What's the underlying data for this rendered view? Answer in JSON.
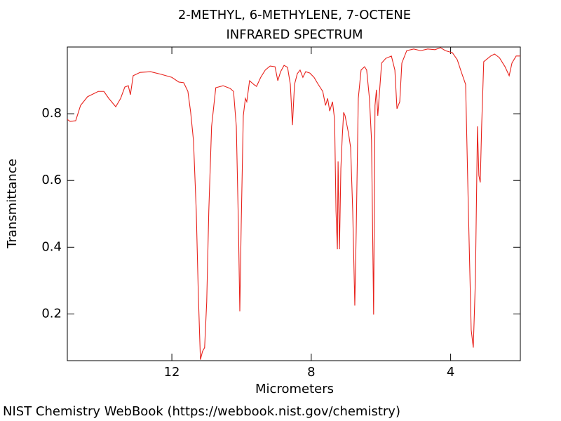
{
  "chart_data": {
    "type": "line",
    "title": "2-METHYL, 6-METHYLENE, 7-OCTENE",
    "subtitle": "INFRARED SPECTRUM",
    "xlabel": "Micrometers",
    "ylabel": "Transmittance",
    "color": "#e8221c",
    "xlim": [
      15,
      2
    ],
    "ylim": [
      0.06,
      1.0
    ],
    "xticks": [
      12,
      8,
      4
    ],
    "yticks": [
      0.2,
      0.4,
      0.6,
      0.8
    ],
    "x": [
      15.0,
      14.92,
      14.76,
      14.62,
      14.42,
      14.11,
      13.95,
      13.81,
      13.61,
      13.47,
      13.35,
      13.25,
      13.19,
      13.11,
      12.91,
      12.61,
      12.3,
      12.0,
      11.8,
      11.66,
      11.54,
      11.46,
      11.38,
      11.3,
      11.24,
      11.18,
      11.12,
      11.06,
      11.0,
      10.94,
      10.86,
      10.74,
      10.53,
      10.33,
      10.23,
      10.15,
      10.09,
      10.05,
      10.01,
      9.95,
      9.89,
      9.85,
      9.77,
      9.65,
      9.57,
      9.45,
      9.32,
      9.18,
      9.04,
      8.96,
      8.88,
      8.78,
      8.68,
      8.6,
      8.54,
      8.48,
      8.4,
      8.32,
      8.24,
      8.16,
      8.04,
      7.92,
      7.8,
      7.67,
      7.59,
      7.53,
      7.47,
      7.39,
      7.33,
      7.29,
      7.25,
      7.23,
      7.19,
      7.15,
      7.11,
      7.07,
      7.03,
      6.99,
      6.93,
      6.87,
      6.81,
      6.75,
      6.71,
      6.65,
      6.57,
      6.47,
      6.41,
      6.33,
      6.27,
      6.21,
      6.17,
      6.13,
      6.09,
      6.04,
      5.98,
      5.86,
      5.7,
      5.6,
      5.54,
      5.46,
      5.4,
      5.26,
      5.06,
      4.86,
      4.66,
      4.45,
      4.29,
      4.15,
      3.95,
      3.81,
      3.69,
      3.57,
      3.49,
      3.41,
      3.35,
      3.29,
      3.23,
      3.19,
      3.15,
      3.11,
      3.05,
      2.85,
      2.74,
      2.6,
      2.44,
      2.32,
      2.24,
      2.12,
      2.0
    ],
    "values": [
      0.783,
      0.777,
      0.779,
      0.825,
      0.851,
      0.867,
      0.867,
      0.846,
      0.821,
      0.846,
      0.88,
      0.884,
      0.857,
      0.914,
      0.924,
      0.926,
      0.918,
      0.909,
      0.895,
      0.893,
      0.867,
      0.804,
      0.72,
      0.509,
      0.257,
      0.063,
      0.088,
      0.099,
      0.236,
      0.509,
      0.762,
      0.878,
      0.884,
      0.876,
      0.867,
      0.762,
      0.467,
      0.208,
      0.467,
      0.794,
      0.846,
      0.836,
      0.899,
      0.888,
      0.882,
      0.909,
      0.931,
      0.943,
      0.941,
      0.899,
      0.926,
      0.945,
      0.939,
      0.888,
      0.766,
      0.888,
      0.92,
      0.931,
      0.909,
      0.926,
      0.922,
      0.909,
      0.888,
      0.867,
      0.825,
      0.846,
      0.808,
      0.836,
      0.783,
      0.509,
      0.394,
      0.657,
      0.394,
      0.636,
      0.731,
      0.804,
      0.794,
      0.773,
      0.741,
      0.699,
      0.509,
      0.225,
      0.446,
      0.846,
      0.931,
      0.941,
      0.931,
      0.846,
      0.72,
      0.198,
      0.825,
      0.872,
      0.794,
      0.867,
      0.952,
      0.966,
      0.973,
      0.931,
      0.815,
      0.836,
      0.952,
      0.989,
      0.994,
      0.989,
      0.994,
      0.992,
      0.998,
      0.989,
      0.983,
      0.962,
      0.924,
      0.888,
      0.509,
      0.152,
      0.099,
      0.299,
      0.762,
      0.615,
      0.594,
      0.762,
      0.956,
      0.973,
      0.979,
      0.968,
      0.941,
      0.914,
      0.952,
      0.973,
      0.973
    ]
  },
  "footer": "NIST Chemistry WebBook (https://webbook.nist.gov/chemistry)"
}
